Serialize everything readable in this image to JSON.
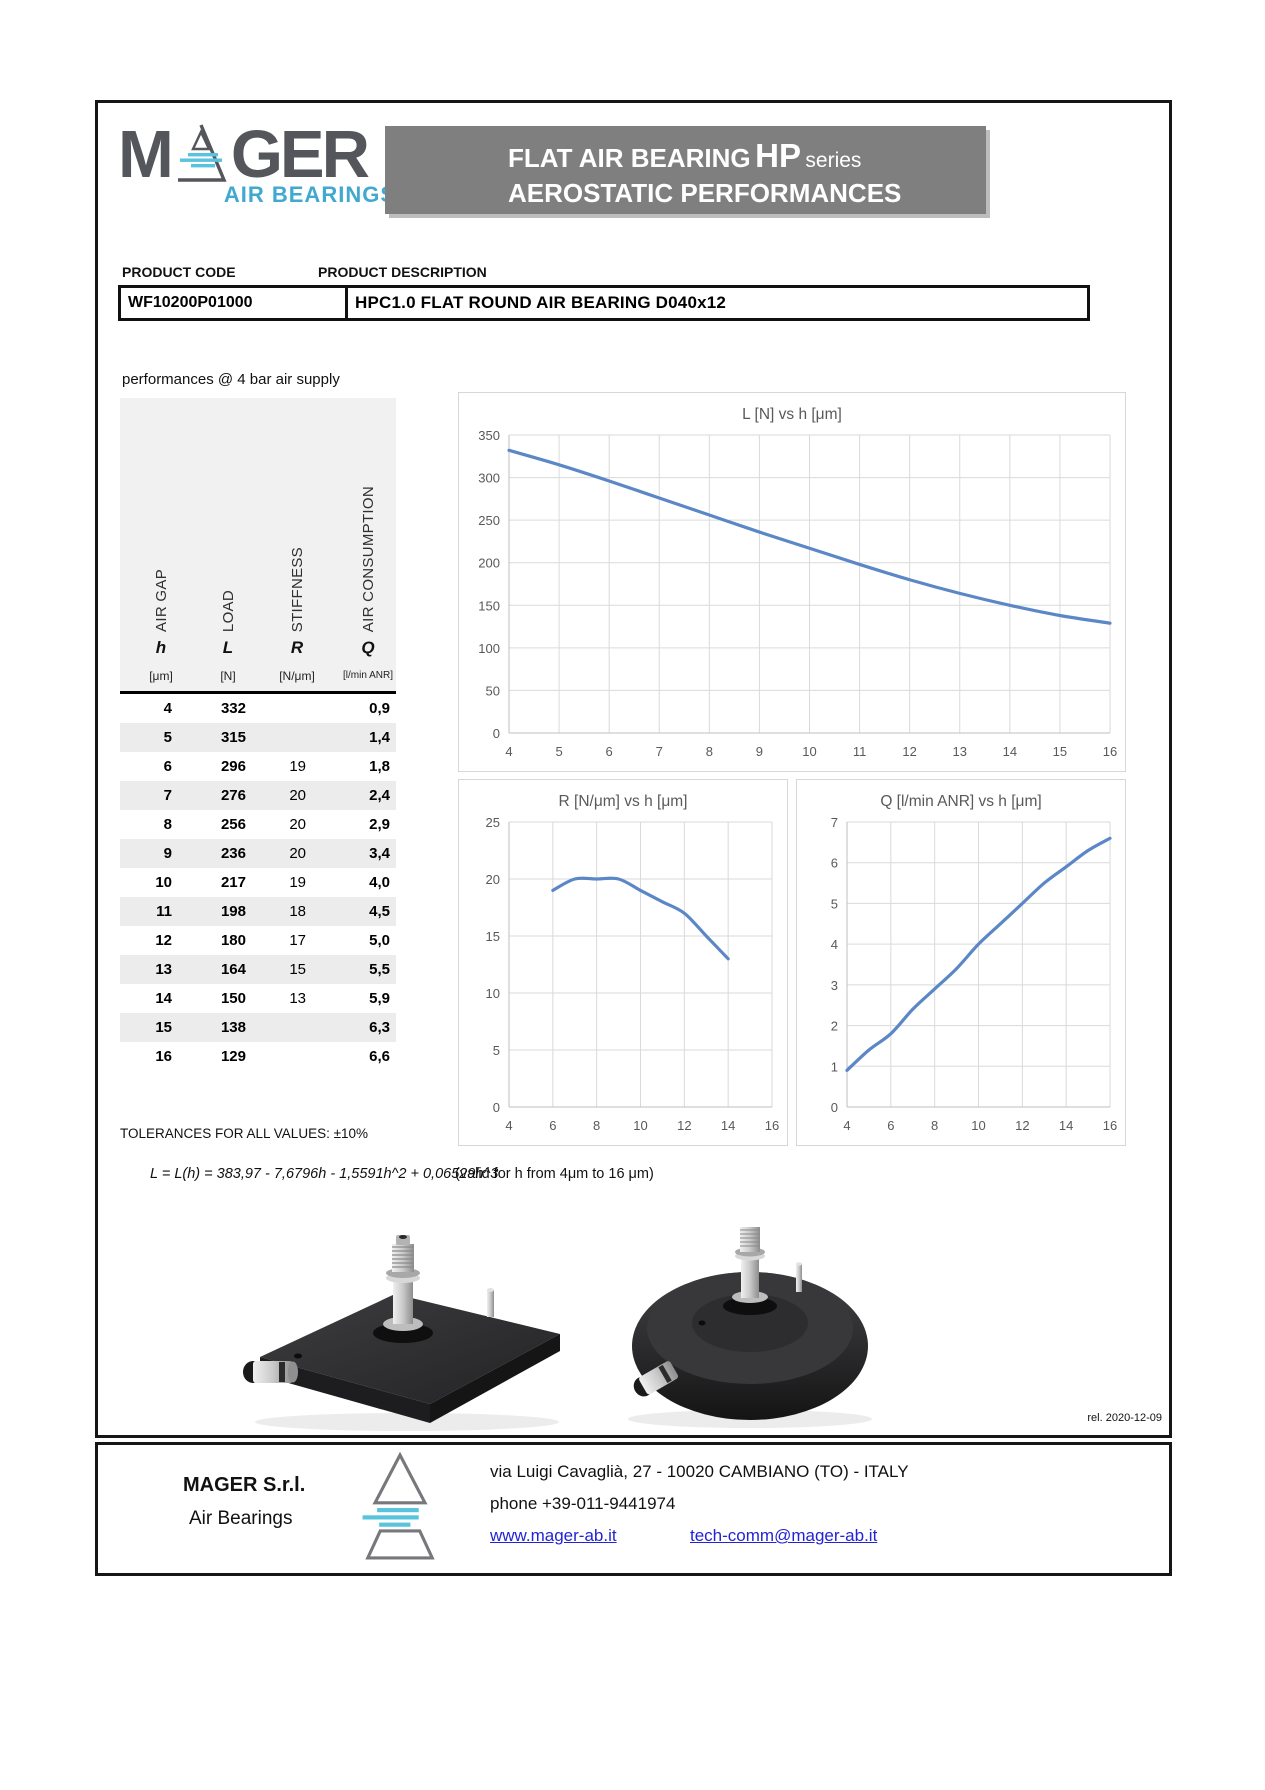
{
  "header": {
    "logo": {
      "letters_left": "M",
      "letters_right": "GER",
      "subtitle": "AIR BEARINGS"
    },
    "banner": {
      "title_main": "FLAT AIR BEARING",
      "title_hp": "HP",
      "title_series": "series",
      "subtitle": "AEROSTATIC PERFORMANCES"
    }
  },
  "product": {
    "code_label": "PRODUCT CODE",
    "description_label": "PRODUCT DESCRIPTION",
    "code": "WF10200P01000",
    "description": "HPC1.0  FLAT ROUND AIR BEARING D040x12"
  },
  "performance": {
    "caption": "performances @ 4 bar air supply",
    "columns": [
      {
        "name": "AIR GAP",
        "symbol": "h",
        "unit": "[μm]"
      },
      {
        "name": "LOAD",
        "symbol": "L",
        "unit": "[N]"
      },
      {
        "name": "STIFFNESS",
        "symbol": "R",
        "unit": "[N/μm]"
      },
      {
        "name": "AIR CONSUMPTION",
        "symbol": "Q",
        "unit": "[l/min ANR]"
      }
    ],
    "rows": [
      [
        "4",
        "332",
        "",
        "0,9"
      ],
      [
        "5",
        "315",
        "",
        "1,4"
      ],
      [
        "6",
        "296",
        "19",
        "1,8"
      ],
      [
        "7",
        "276",
        "20",
        "2,4"
      ],
      [
        "8",
        "256",
        "20",
        "2,9"
      ],
      [
        "9",
        "236",
        "20",
        "3,4"
      ],
      [
        "10",
        "217",
        "19",
        "4,0"
      ],
      [
        "11",
        "198",
        "18",
        "4,5"
      ],
      [
        "12",
        "180",
        "17",
        "5,0"
      ],
      [
        "13",
        "164",
        "15",
        "5,5"
      ],
      [
        "14",
        "150",
        "13",
        "5,9"
      ],
      [
        "15",
        "138",
        "",
        "6,3"
      ],
      [
        "16",
        "129",
        "",
        "6,6"
      ]
    ],
    "tolerances": "TOLERANCES FOR ALL VALUES: ±10%",
    "formula": "L = L(h) = 383,97 - 7,6796h - 1,5591h^2 + 0,06529h^3",
    "formula_validity": "(valid for h  from 4μm to 16 μm)"
  },
  "chart_data": [
    {
      "type": "line",
      "title": "L [N] vs h [μm]",
      "xlabel": "h [μm]",
      "ylabel": "L [N]",
      "x": [
        4,
        5,
        6,
        7,
        8,
        9,
        10,
        11,
        12,
        13,
        14,
        15,
        16
      ],
      "y": [
        332,
        315,
        296,
        276,
        256,
        236,
        217,
        198,
        180,
        164,
        150,
        138,
        129
      ],
      "xlim": [
        4,
        16
      ],
      "ylim": [
        0,
        350
      ],
      "xtick_step": 1,
      "ytick_step": 50,
      "grid": true,
      "legend": "none",
      "line_color": "#5b87c7"
    },
    {
      "type": "line",
      "title": "R [N/μm] vs h [μm]",
      "xlabel": "h [μm]",
      "ylabel": "R [N/μm]",
      "x": [
        6,
        7,
        8,
        9,
        10,
        11,
        12,
        13,
        14
      ],
      "y": [
        19,
        20,
        20,
        20,
        19,
        18,
        17,
        15,
        13
      ],
      "xlim": [
        4,
        16
      ],
      "ylim": [
        0,
        25
      ],
      "xtick_step": 2,
      "ytick_step": 5,
      "grid": true,
      "legend": "none",
      "line_color": "#5b87c7"
    },
    {
      "type": "line",
      "title": "Q [l/min ANR] vs h [μm]",
      "xlabel": "h [μm]",
      "ylabel": "Q [l/min ANR]",
      "x": [
        4,
        5,
        6,
        7,
        8,
        9,
        10,
        11,
        12,
        13,
        14,
        15,
        16
      ],
      "y": [
        0.9,
        1.4,
        1.8,
        2.4,
        2.9,
        3.4,
        4.0,
        4.5,
        5.0,
        5.5,
        5.9,
        6.3,
        6.6
      ],
      "xlim": [
        4,
        16
      ],
      "ylim": [
        0,
        7
      ],
      "xtick_step": 2,
      "ytick_step": 1,
      "grid": true,
      "legend": "none",
      "line_color": "#5b87c7"
    }
  ],
  "release": "rel. 2020-12-09",
  "footer": {
    "company": "MAGER S.r.l.",
    "company_sub": "Air Bearings",
    "address": "via Luigi Cavaglià, 27  - 10020 CAMBIANO (TO) - ITALY",
    "phone": "phone  +39-011-9441974",
    "website": "www.mager-ab.it",
    "email": "tech-comm@mager-ab.it"
  },
  "colors": {
    "brand_blue": "#41a8cf",
    "brand_gray": "#54565b",
    "banner_gray": "#7f7f7f",
    "chart_line": "#5b87c7",
    "link_blue": "#2323d6"
  }
}
